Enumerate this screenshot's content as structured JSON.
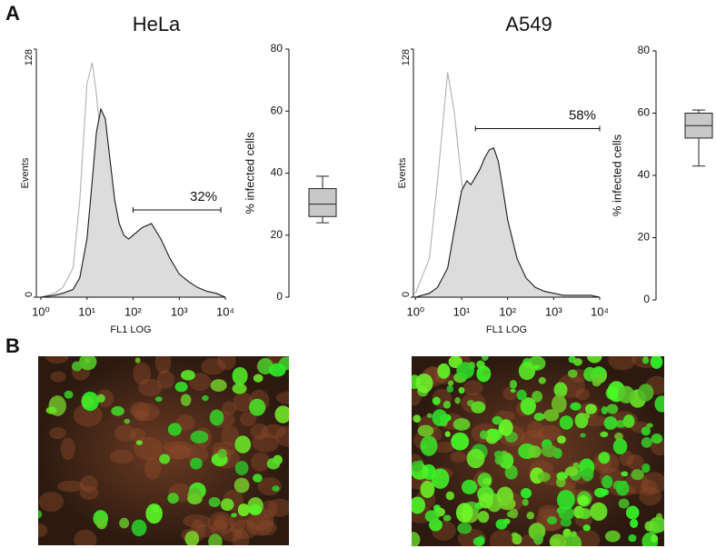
{
  "panel_labels": [
    "A",
    "B"
  ],
  "chart_data": [
    {
      "type": "line",
      "title": "HeLa",
      "xlabel": "FL1 LOG",
      "ylabel": "Events",
      "xlog": true,
      "xlim": [
        0.8,
        10000
      ],
      "xticks": [
        {
          "value": 1,
          "label": "10⁰"
        },
        {
          "value": 10,
          "label": "10¹"
        },
        {
          "value": 100,
          "label": "10²"
        },
        {
          "value": 1000,
          "label": "10³"
        },
        {
          "value": 10000,
          "label": "10⁴"
        }
      ],
      "ylim": [
        0,
        128
      ],
      "yticks": [
        0,
        128
      ],
      "x": [
        1,
        2,
        3,
        5,
        7,
        10,
        13,
        16,
        20,
        25,
        32,
        40,
        50,
        63,
        80,
        100,
        160,
        250,
        400,
        630,
        1000,
        1600,
        2500,
        4000,
        6300,
        10000
      ],
      "series": [
        {
          "color": "#b0b0b0",
          "values": [
            0,
            2,
            5,
            15,
            50,
            110,
            121,
            105,
            80,
            55,
            38,
            28,
            22,
            20,
            17,
            14,
            8,
            4,
            2,
            1,
            0,
            0,
            0,
            0,
            0,
            0
          ]
        },
        {
          "color": "#1a1a1a",
          "fill": "#dcdcdc",
          "values": [
            0,
            1,
            2,
            4,
            10,
            30,
            60,
            85,
            97,
            92,
            70,
            50,
            38,
            32,
            30,
            32,
            36,
            38,
            30,
            20,
            12,
            8,
            5,
            3,
            2,
            0
          ]
        }
      ],
      "gate": {
        "from": 100,
        "to": 8000,
        "level": 45,
        "label": "32%"
      }
    },
    {
      "type": "box",
      "ylabel": "% infected cells",
      "ylim": [
        0,
        80
      ],
      "yticks": [
        0,
        20,
        40,
        60,
        80
      ],
      "box": {
        "min": 24,
        "q1": 26,
        "median": 30,
        "q3": 35,
        "max": 39
      },
      "color": "#c8c8c8"
    },
    {
      "type": "line",
      "title": "A549",
      "xlabel": "FL1 LOG",
      "ylabel": "Events",
      "xlog": true,
      "xlim": [
        0.9,
        10000
      ],
      "xticks": [
        {
          "value": 1,
          "label": "10⁰"
        },
        {
          "value": 10,
          "label": "10¹"
        },
        {
          "value": 100,
          "label": "10²"
        },
        {
          "value": 1000,
          "label": "10³"
        },
        {
          "value": 10000,
          "label": "10⁴"
        }
      ],
      "ylim": [
        0,
        128
      ],
      "yticks": [
        0,
        128
      ],
      "x": [
        1,
        2,
        3,
        5,
        7,
        10,
        13,
        16,
        20,
        25,
        32,
        40,
        50,
        63,
        80,
        100,
        160,
        250,
        400,
        630,
        1000,
        1600,
        2500,
        4000,
        6300,
        10000
      ],
      "series": [
        {
          "color": "#b0b0b0",
          "values": [
            2,
            20,
            60,
            116,
            95,
            60,
            40,
            30,
            22,
            18,
            14,
            10,
            8,
            6,
            5,
            4,
            2,
            1,
            0,
            0,
            0,
            0,
            0,
            0,
            0,
            0
          ]
        },
        {
          "color": "#1a1a1a",
          "fill": "#dcdcdc",
          "values": [
            0,
            2,
            5,
            15,
            35,
            55,
            60,
            58,
            62,
            66,
            72,
            76,
            77,
            70,
            55,
            40,
            20,
            10,
            5,
            3,
            2,
            1,
            1,
            1,
            1,
            0
          ]
        }
      ],
      "gate": {
        "from": 20,
        "to": 10000,
        "level": 87,
        "label": "58%"
      }
    },
    {
      "type": "box",
      "ylabel": "% infected cells",
      "ylim": [
        0,
        80
      ],
      "yticks": [
        0,
        20,
        40,
        60,
        80
      ],
      "box": {
        "min": 43,
        "q1": 52,
        "median": 56,
        "q3": 60,
        "max": 61
      },
      "color": "#c8c8c8"
    }
  ]
}
